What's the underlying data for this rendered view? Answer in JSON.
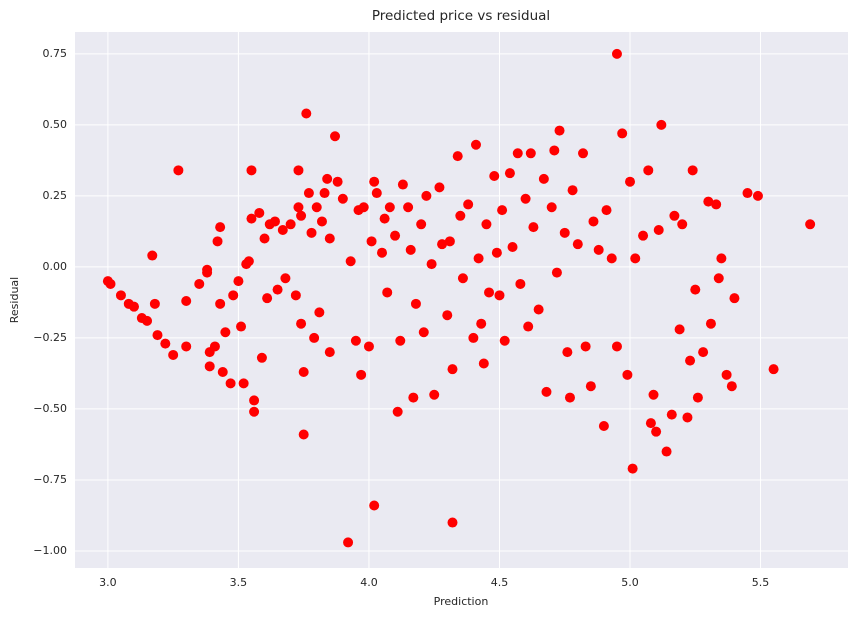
{
  "chart_data": {
    "type": "scatter",
    "title": "Predicted price vs residual",
    "x_label": "Prediction",
    "y_label": "Residual",
    "color": "#ff0000",
    "grid": true,
    "xlim": [
      2.874,
      5.835
    ],
    "ylim": [
      -1.06,
      0.827
    ],
    "xticks": [
      {
        "value": 3,
        "label": "3.0"
      },
      3.5,
      {
        "value": 4,
        "label": "4.0"
      },
      4.5,
      {
        "value": 5,
        "label": "5.0"
      },
      5.5
    ],
    "yticks": [
      0.75,
      {
        "value": 0.5,
        "label": "0.50"
      },
      0.25,
      {
        "value": 0,
        "label": "0.00"
      },
      {
        "value": -0.25,
        "label": "−0.25"
      },
      {
        "value": -0.5,
        "label": "−0.50"
      },
      {
        "value": -0.75,
        "label": "−0.75"
      },
      {
        "value": -1,
        "label": "−1.00"
      }
    ],
    "x": [
      3.0,
      3.01,
      3.05,
      3.08,
      3.1,
      3.13,
      3.15,
      3.17,
      3.18,
      3.19,
      3.22,
      3.25,
      3.27,
      3.3,
      3.3,
      3.35,
      3.38,
      3.38,
      3.39,
      3.39,
      3.41,
      3.42,
      3.43,
      3.43,
      3.44,
      3.45,
      3.47,
      3.48,
      3.5,
      3.51,
      3.52,
      3.53,
      3.54,
      3.55,
      3.55,
      3.56,
      3.56,
      3.58,
      3.59,
      3.6,
      3.61,
      3.62,
      3.64,
      3.65,
      3.67,
      3.68,
      3.7,
      3.72,
      3.73,
      3.73,
      3.74,
      3.74,
      3.75,
      3.75,
      3.76,
      3.77,
      3.78,
      3.79,
      3.8,
      3.81,
      3.82,
      3.83,
      3.84,
      3.85,
      3.85,
      3.87,
      3.88,
      3.9,
      3.92,
      3.93,
      3.95,
      3.96,
      3.97,
      3.98,
      4.0,
      4.01,
      4.02,
      4.02,
      4.03,
      4.05,
      4.06,
      4.07,
      4.08,
      4.1,
      4.11,
      4.12,
      4.13,
      4.15,
      4.16,
      4.17,
      4.18,
      4.2,
      4.21,
      4.22,
      4.24,
      4.25,
      4.27,
      4.28,
      4.3,
      4.31,
      4.32,
      4.32,
      4.34,
      4.35,
      4.36,
      4.38,
      4.4,
      4.41,
      4.42,
      4.43,
      4.44,
      4.45,
      4.46,
      4.48,
      4.49,
      4.5,
      4.51,
      4.52,
      4.54,
      4.55,
      4.57,
      4.58,
      4.6,
      4.61,
      4.62,
      4.63,
      4.65,
      4.67,
      4.68,
      4.7,
      4.71,
      4.72,
      4.73,
      4.75,
      4.76,
      4.77,
      4.78,
      4.8,
      4.82,
      4.83,
      4.85,
      4.86,
      4.88,
      4.9,
      4.91,
      4.93,
      4.95,
      4.95,
      4.97,
      4.99,
      5.0,
      5.01,
      5.02,
      5.05,
      5.07,
      5.08,
      5.09,
      5.1,
      5.11,
      5.12,
      5.14,
      5.16,
      5.17,
      5.19,
      5.2,
      5.22,
      5.23,
      5.24,
      5.25,
      5.26,
      5.28,
      5.3,
      5.31,
      5.33,
      5.34,
      5.35,
      5.37,
      5.39,
      5.4,
      5.45,
      5.49,
      5.55,
      5.69
    ],
    "values": [
      -0.05,
      -0.06,
      -0.1,
      -0.13,
      -0.14,
      -0.18,
      -0.19,
      0.04,
      -0.13,
      -0.24,
      -0.27,
      -0.31,
      0.34,
      -0.12,
      -0.28,
      -0.06,
      -0.02,
      -0.01,
      -0.3,
      -0.35,
      -0.28,
      0.09,
      0.14,
      -0.13,
      -0.37,
      -0.23,
      -0.41,
      -0.1,
      -0.05,
      -0.21,
      -0.41,
      0.01,
      0.02,
      0.34,
      0.17,
      -0.51,
      -0.47,
      0.19,
      -0.32,
      0.1,
      -0.11,
      0.15,
      0.16,
      -0.08,
      0.13,
      -0.04,
      0.15,
      -0.1,
      0.34,
      0.21,
      0.18,
      -0.2,
      -0.37,
      -0.59,
      0.54,
      0.26,
      0.12,
      -0.25,
      0.21,
      -0.16,
      0.16,
      0.26,
      0.31,
      0.1,
      -0.3,
      0.46,
      0.3,
      0.24,
      -0.97,
      0.02,
      -0.26,
      0.2,
      -0.38,
      0.21,
      -0.28,
      0.09,
      -0.84,
      0.3,
      0.26,
      0.05,
      0.17,
      -0.09,
      0.21,
      0.11,
      -0.51,
      -0.26,
      0.29,
      0.21,
      0.06,
      -0.46,
      -0.13,
      0.15,
      -0.23,
      0.25,
      0.01,
      -0.45,
      0.28,
      0.08,
      -0.17,
      0.09,
      -0.36,
      -0.9,
      0.39,
      0.18,
      -0.04,
      0.22,
      -0.25,
      0.43,
      0.03,
      -0.2,
      -0.34,
      0.15,
      -0.09,
      0.32,
      0.05,
      -0.1,
      0.2,
      -0.26,
      0.33,
      0.07,
      0.4,
      -0.06,
      0.24,
      -0.21,
      0.4,
      0.14,
      -0.15,
      0.31,
      -0.44,
      0.21,
      0.41,
      -0.02,
      0.48,
      0.12,
      -0.3,
      -0.46,
      0.27,
      0.08,
      0.4,
      -0.28,
      -0.42,
      0.16,
      0.06,
      -0.56,
      0.2,
      0.03,
      0.75,
      -0.28,
      0.47,
      -0.38,
      0.3,
      -0.71,
      0.03,
      0.11,
      0.34,
      -0.55,
      -0.45,
      -0.58,
      0.13,
      0.5,
      -0.65,
      -0.52,
      0.18,
      -0.22,
      0.15,
      -0.53,
      -0.33,
      0.34,
      -0.08,
      -0.46,
      -0.3,
      0.23,
      -0.2,
      0.22,
      -0.04,
      0.03,
      -0.38,
      -0.42,
      -0.11,
      0.26,
      0.25,
      -0.36,
      0.15
    ]
  }
}
